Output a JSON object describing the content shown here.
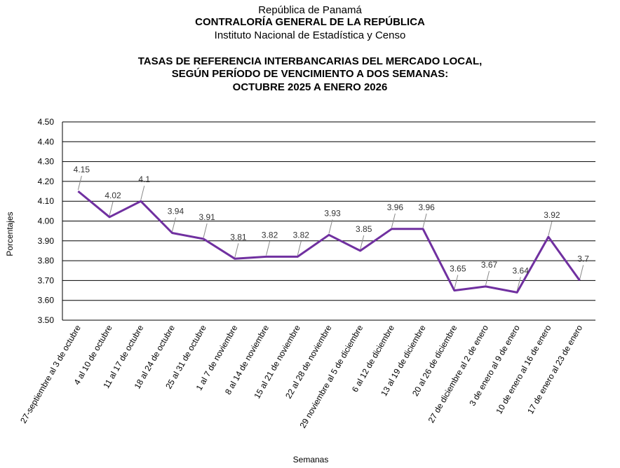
{
  "header": {
    "line1": "República de Panamá",
    "line2": "CONTRALORÍA GENERAL DE LA REPÚBLICA",
    "line3": "Instituto  Nacional de Estadística  y  Censo"
  },
  "chart_data": {
    "type": "line",
    "title": [
      "TASAS DE REFERENCIA INTERBANCARIAS DEL MERCADO LOCAL,",
      "SEGÚN PERÍODO DE VENCIMIENTO A DOS SEMANAS:",
      "OCTUBRE 2025 A ENERO 2026"
    ],
    "xlabel": "Semanas",
    "ylabel": "Porcentajes",
    "ylim": [
      3.5,
      4.5
    ],
    "yticks": [
      "3.50",
      "3.60",
      "3.70",
      "3.80",
      "3.90",
      "4.00",
      "4.10",
      "4.20",
      "4.30",
      "4.40",
      "4.50"
    ],
    "grid": true,
    "line_color": "#7030A0",
    "categories": [
      "27-septiembre al 3 de octubre",
      "4 al 10 de octubre",
      "11 al 17 de octubre",
      "18 al 24 de octubre",
      "25 al 31 de octubre",
      "1 al 7 de noviembre",
      "8 al 14 de noviembre",
      "15 al 21 de noviembre",
      "22 al 28 de noviembre",
      "29 noviembre al 5 de diciembre",
      "6 al 12 de diciembre",
      "13 al 19 de diciembre",
      "20 al 26 de diciembre",
      "27 de diciembre al 2 de enero",
      "3 de enero al 9 de enero",
      "10 de enero al 16 de enero",
      "17 de enero al 23 de enero"
    ],
    "values": [
      4.15,
      4.02,
      4.1,
      3.94,
      3.91,
      3.81,
      3.82,
      3.82,
      3.93,
      3.85,
      3.96,
      3.96,
      3.65,
      3.67,
      3.64,
      3.92,
      3.7
    ],
    "data_labels": [
      "4.15",
      "4.02",
      "4.1",
      "3.94",
      "3.91",
      "3.81",
      "3.82",
      "3.82",
      "3.93",
      "3.85",
      "3.96",
      "3.96",
      "3.65",
      "3.67",
      "3.64",
      "3.92",
      "3.7"
    ]
  }
}
